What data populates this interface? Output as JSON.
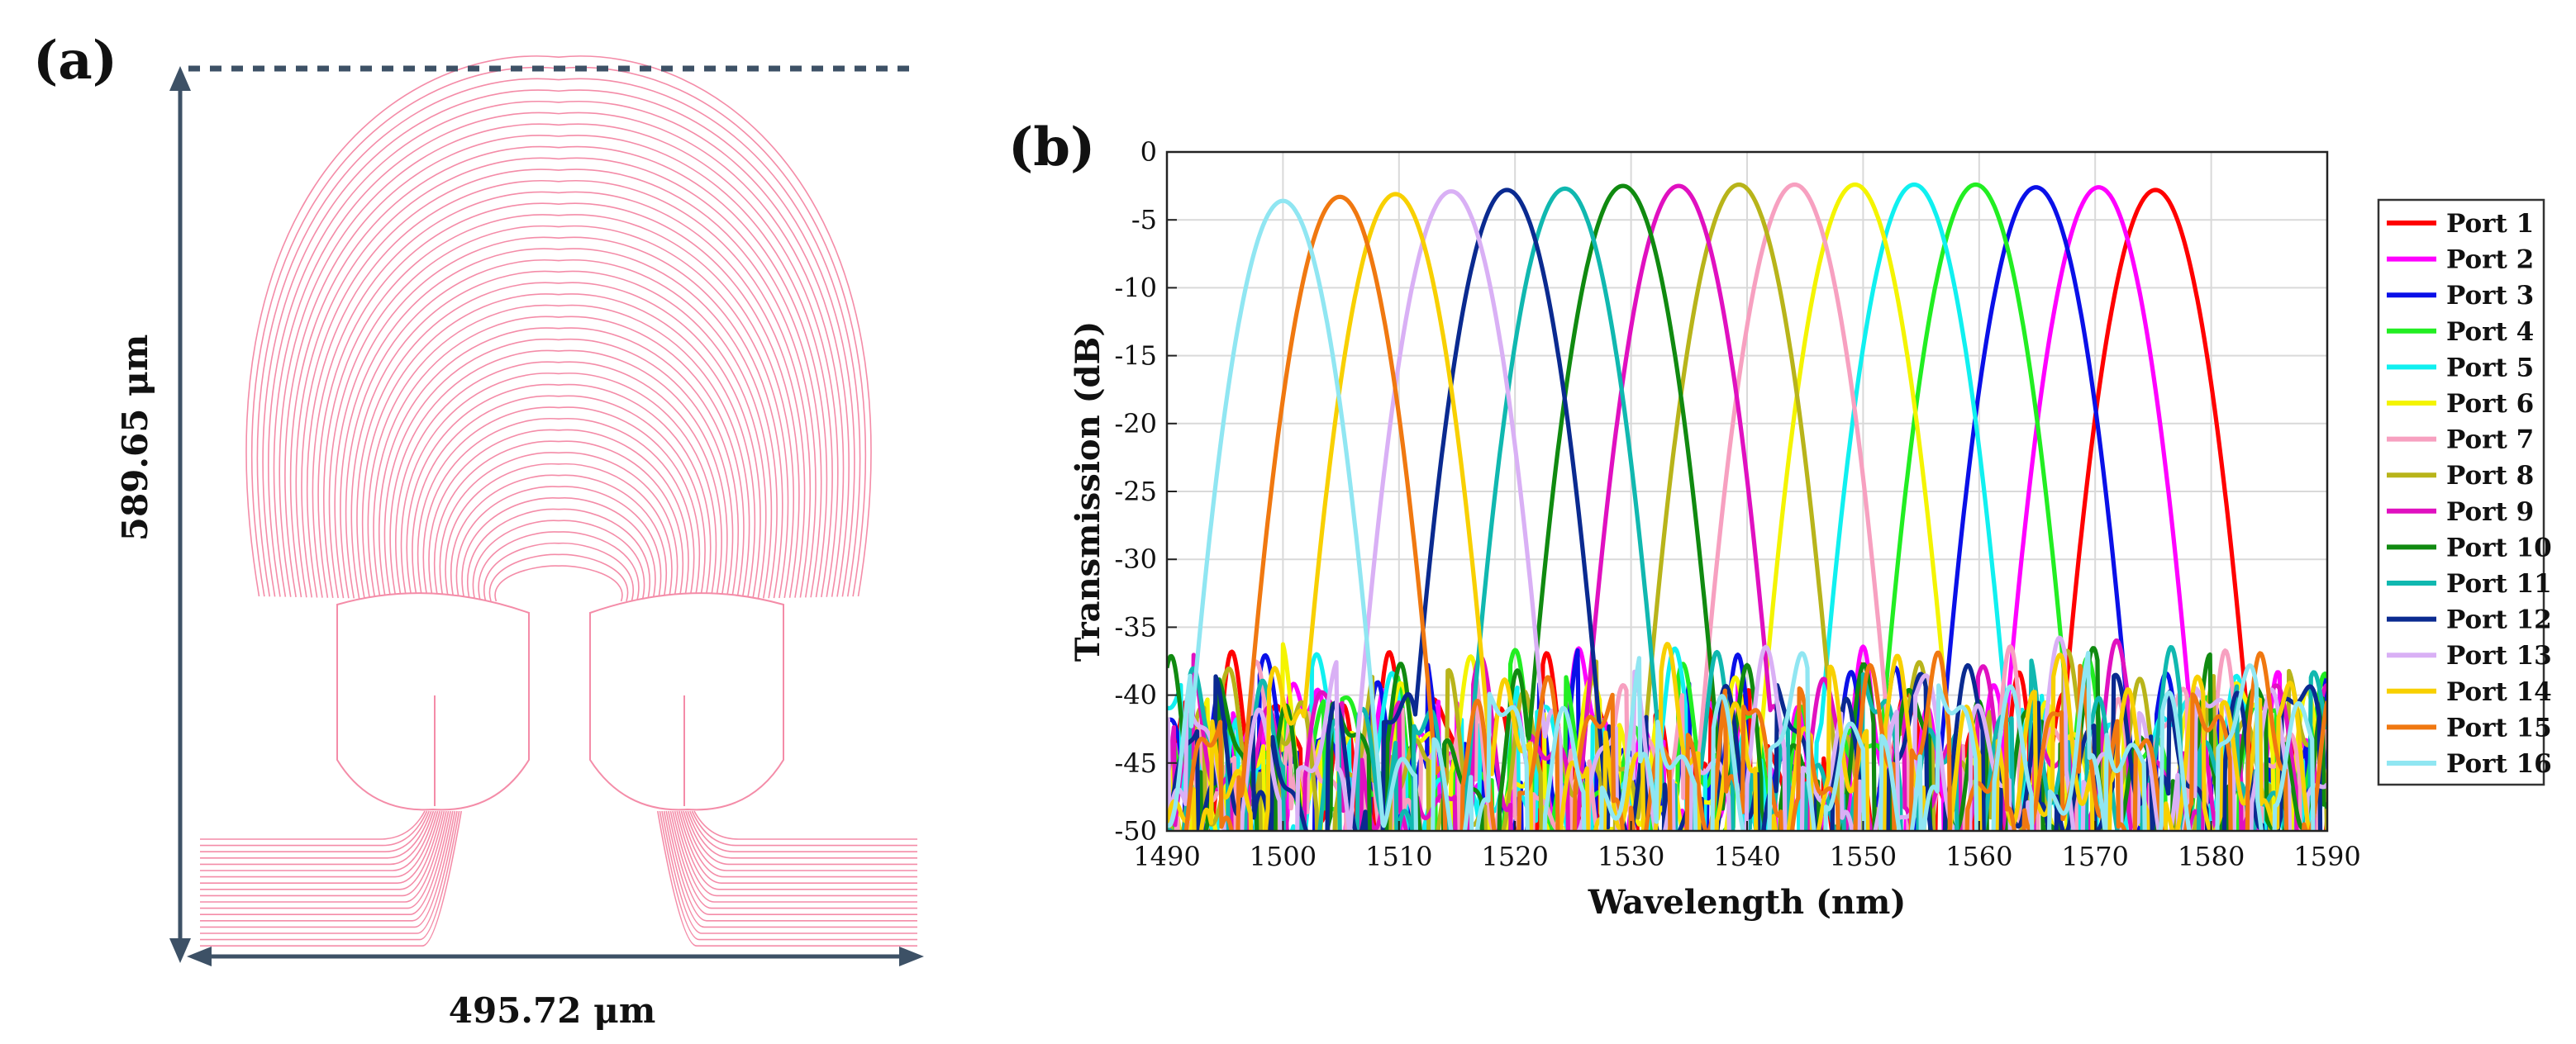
{
  "panels": {
    "a_label": "(a)",
    "b_label": "(b)"
  },
  "layout_panel": {
    "width_label": "495.72 μm",
    "height_label": "589.65 μm",
    "colors": {
      "waveguide": "#f48ca8",
      "dimension": "#3d5166"
    }
  },
  "chart_data": {
    "type": "line",
    "title": "",
    "xlabel": "Wavelength (nm)",
    "ylabel": "Transmission (dB)",
    "xlim": [
      1490,
      1590
    ],
    "ylim": [
      -50,
      0
    ],
    "xticks": [
      1490,
      1500,
      1510,
      1520,
      1530,
      1540,
      1550,
      1560,
      1570,
      1580,
      1590
    ],
    "yticks": [
      0,
      -5,
      -10,
      -15,
      -20,
      -25,
      -30,
      -35,
      -40,
      -45,
      -50
    ],
    "grid": true,
    "legend_position": "right",
    "series": [
      {
        "name": "Port 1",
        "color": "#ff0000",
        "peak_nm": 1575.2,
        "peak_db": -2.8
      },
      {
        "name": "Port 2",
        "color": "#ff00ff",
        "peak_nm": 1570.3,
        "peak_db": -2.6
      },
      {
        "name": "Port 3",
        "color": "#0a10e8",
        "peak_nm": 1564.9,
        "peak_db": -2.6
      },
      {
        "name": "Port 4",
        "color": "#22ee22",
        "peak_nm": 1559.7,
        "peak_db": -2.4
      },
      {
        "name": "Port 5",
        "color": "#10f0f0",
        "peak_nm": 1554.4,
        "peak_db": -2.4
      },
      {
        "name": "Port 6",
        "color": "#f4f400",
        "peak_nm": 1549.3,
        "peak_db": -2.4
      },
      {
        "name": "Port 7",
        "color": "#f7a0c0",
        "peak_nm": 1544.1,
        "peak_db": -2.4
      },
      {
        "name": "Port 8",
        "color": "#b8b41a",
        "peak_nm": 1539.3,
        "peak_db": -2.4
      },
      {
        "name": "Port 9",
        "color": "#e010c0",
        "peak_nm": 1534.1,
        "peak_db": -2.5
      },
      {
        "name": "Port 10",
        "color": "#108a10",
        "peak_nm": 1529.3,
        "peak_db": -2.5
      },
      {
        "name": "Port 11",
        "color": "#10b8b0",
        "peak_nm": 1524.3,
        "peak_db": -2.7
      },
      {
        "name": "Port 12",
        "color": "#0a2a90",
        "peak_nm": 1519.3,
        "peak_db": -2.8
      },
      {
        "name": "Port 13",
        "color": "#d9b0f5",
        "peak_nm": 1514.5,
        "peak_db": -2.9
      },
      {
        "name": "Port 14",
        "color": "#f8d000",
        "peak_nm": 1509.7,
        "peak_db": -3.1
      },
      {
        "name": "Port 15",
        "color": "#f07810",
        "peak_nm": 1504.9,
        "peak_db": -3.3
      },
      {
        "name": "Port 16",
        "color": "#90e6f2",
        "peak_nm": 1500.0,
        "peak_db": -3.6
      }
    ]
  }
}
